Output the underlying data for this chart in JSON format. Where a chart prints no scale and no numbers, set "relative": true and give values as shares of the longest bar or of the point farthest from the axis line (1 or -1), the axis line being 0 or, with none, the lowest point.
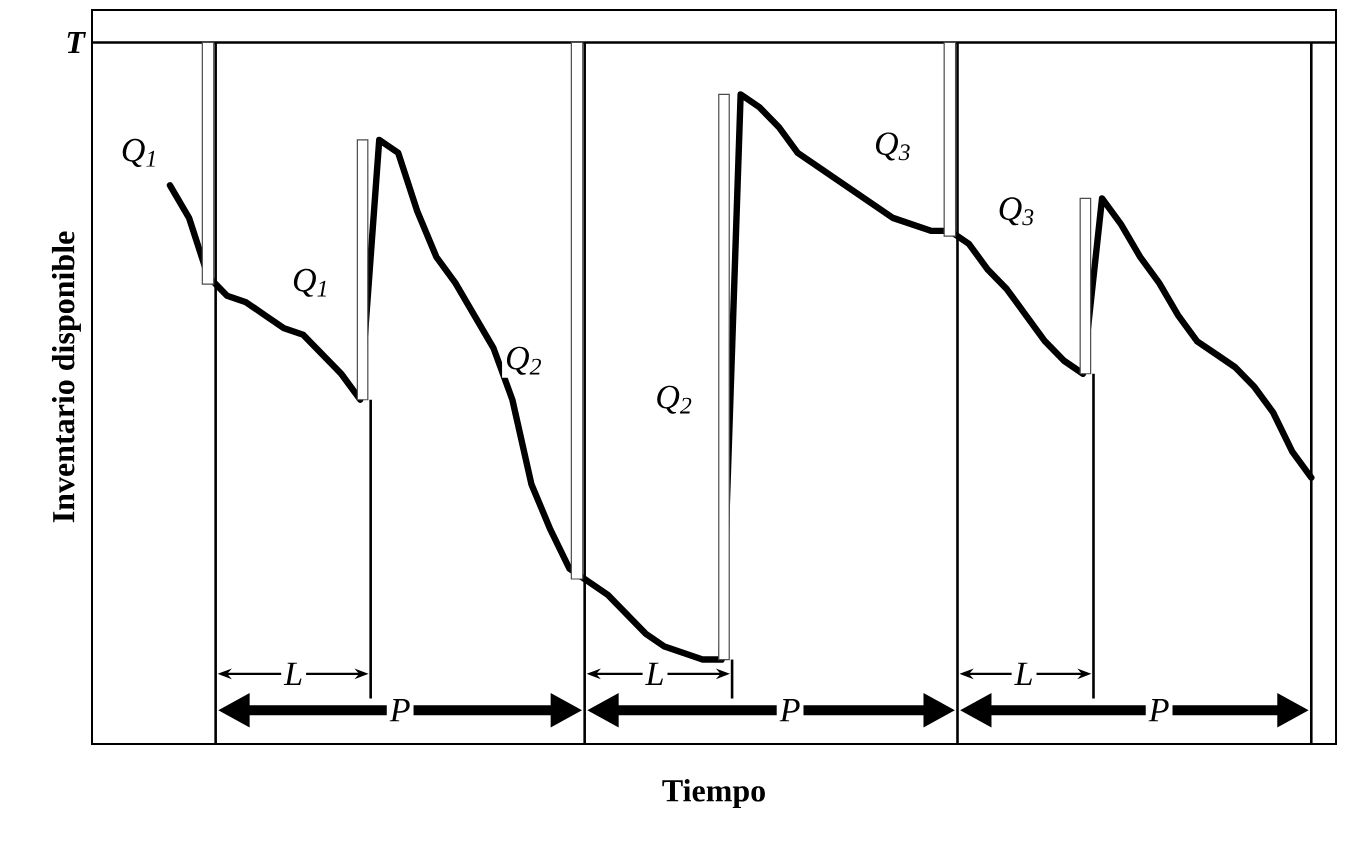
{
  "chart_data": {
    "type": "line",
    "relative": true,
    "xlabel": "Tiempo",
    "ylabel": "Inventario disponible",
    "color": "#000000",
    "line_style": "solid",
    "categories": [
      null,
      null,
      null,
      null,
      null,
      null,
      null,
      null,
      null,
      null,
      null,
      null,
      null,
      null,
      null,
      null,
      null,
      null,
      null,
      null,
      null,
      null,
      null,
      null,
      null,
      null,
      null,
      null,
      null,
      null,
      null,
      null,
      null,
      null,
      null,
      null,
      null,
      null,
      null,
      null,
      null,
      null,
      null,
      null,
      null,
      null,
      null,
      null,
      null,
      null,
      null,
      null,
      null,
      null,
      null,
      null,
      null,
      null,
      null,
      null,
      null
    ],
    "values": [
      0.86,
      0.81,
      0.72,
      0.69,
      0.68,
      0.66,
      0.64,
      0.63,
      0.6,
      0.57,
      0.53,
      0.93,
      0.91,
      0.82,
      0.75,
      0.71,
      0.66,
      0.61,
      0.53,
      0.4,
      0.33,
      0.27,
      0.25,
      0.23,
      0.2,
      0.17,
      0.15,
      0.14,
      0.13,
      0.13,
      1.0,
      0.98,
      0.95,
      0.91,
      0.89,
      0.87,
      0.85,
      0.83,
      0.81,
      0.8,
      0.79,
      0.79,
      0.77,
      0.73,
      0.7,
      0.66,
      0.62,
      0.59,
      0.57,
      0.84,
      0.8,
      0.75,
      0.71,
      0.66,
      0.62,
      0.6,
      0.58,
      0.55,
      0.51,
      0.45,
      0.41
    ],
    "ref_lines": [
      {
        "axis": "y",
        "value": 1.08,
        "label": "T"
      }
    ],
    "annotations": [
      "Q$_{1}$",
      "Q$_{1}$",
      "Q$_{2}$",
      "Q$_{2}$",
      "Q$_{3}$",
      "Q$_{3}$",
      "L",
      "L",
      "L",
      "P",
      "P",
      "P"
    ]
  }
}
